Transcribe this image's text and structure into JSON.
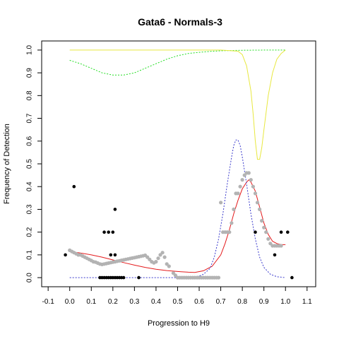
{
  "chart_data": {
    "type": "scatter",
    "title": "Gata6 - Normals-3",
    "xlabel": "Progression to H9",
    "ylabel": "Frequency of Detection",
    "xlim": [
      -0.13,
      1.14
    ],
    "ylim": [
      -0.04,
      1.04
    ],
    "x_ticks": [
      "-0.1",
      "0.0",
      "0.1",
      "0.2",
      "0.3",
      "0.4",
      "0.5",
      "0.6",
      "0.7",
      "0.8",
      "0.9",
      "1.0",
      "1.1"
    ],
    "y_ticks": [
      "0.0",
      "0.1",
      "0.2",
      "0.3",
      "0.4",
      "0.5",
      "0.6",
      "0.7",
      "0.8",
      "0.9",
      "1.0"
    ],
    "grid": false,
    "legend": "none",
    "colors": {
      "gray_points": "#b3b3b3",
      "black_points": "#000000",
      "red_curve": "#e41a1c",
      "blue_curve": "#3a3acc",
      "green_curve": "#22dd22",
      "yellow_curve": "#e8e840"
    },
    "series": [
      {
        "kind": "points",
        "color": "gray",
        "points": [
          [
            0.0,
            0.12
          ],
          [
            0.01,
            0.115
          ],
          [
            0.02,
            0.11
          ],
          [
            0.03,
            0.105
          ],
          [
            0.04,
            0.1
          ],
          [
            0.05,
            0.1
          ],
          [
            0.06,
            0.095
          ],
          [
            0.07,
            0.09
          ],
          [
            0.08,
            0.085
          ],
          [
            0.09,
            0.08
          ],
          [
            0.1,
            0.075
          ],
          [
            0.11,
            0.07
          ],
          [
            0.12,
            0.068
          ],
          [
            0.13,
            0.064
          ],
          [
            0.14,
            0.06
          ],
          [
            0.15,
            0.058
          ],
          [
            0.16,
            0.06
          ],
          [
            0.17,
            0.062
          ],
          [
            0.18,
            0.064
          ],
          [
            0.19,
            0.066
          ],
          [
            0.2,
            0.068
          ],
          [
            0.21,
            0.07
          ],
          [
            0.22,
            0.072
          ],
          [
            0.23,
            0.074
          ],
          [
            0.24,
            0.076
          ],
          [
            0.25,
            0.078
          ],
          [
            0.26,
            0.08
          ],
          [
            0.27,
            0.082
          ],
          [
            0.28,
            0.084
          ],
          [
            0.29,
            0.086
          ],
          [
            0.3,
            0.088
          ],
          [
            0.31,
            0.09
          ],
          [
            0.32,
            0.092
          ],
          [
            0.33,
            0.094
          ],
          [
            0.34,
            0.096
          ],
          [
            0.35,
            0.098
          ],
          [
            0.36,
            0.09
          ],
          [
            0.37,
            0.08
          ],
          [
            0.38,
            0.07
          ],
          [
            0.39,
            0.065
          ],
          [
            0.4,
            0.07
          ],
          [
            0.41,
            0.085
          ],
          [
            0.42,
            0.1
          ],
          [
            0.43,
            0.11
          ],
          [
            0.44,
            0.09
          ],
          [
            0.45,
            0.06
          ],
          [
            0.46,
            0.05
          ],
          [
            0.48,
            0.02
          ],
          [
            0.49,
            0.01
          ],
          [
            0.5,
            0.0
          ],
          [
            0.51,
            0.0
          ],
          [
            0.52,
            0.0
          ],
          [
            0.53,
            0.0
          ],
          [
            0.54,
            0.0
          ],
          [
            0.55,
            0.0
          ],
          [
            0.56,
            0.0
          ],
          [
            0.57,
            0.0
          ],
          [
            0.58,
            0.0
          ],
          [
            0.59,
            0.0
          ],
          [
            0.6,
            0.0
          ],
          [
            0.61,
            0.0
          ],
          [
            0.62,
            0.0
          ],
          [
            0.63,
            0.0
          ],
          [
            0.64,
            0.0
          ],
          [
            0.65,
            0.0
          ],
          [
            0.66,
            0.0
          ],
          [
            0.67,
            0.0
          ],
          [
            0.68,
            0.0
          ],
          [
            0.69,
            0.0
          ],
          [
            0.7,
            0.33
          ],
          [
            0.71,
            0.2
          ],
          [
            0.72,
            0.2
          ],
          [
            0.73,
            0.2
          ],
          [
            0.74,
            0.2
          ],
          [
            0.75,
            0.24
          ],
          [
            0.76,
            0.3
          ],
          [
            0.77,
            0.37
          ],
          [
            0.78,
            0.37
          ],
          [
            0.79,
            0.4
          ],
          [
            0.8,
            0.43
          ],
          [
            0.81,
            0.45
          ],
          [
            0.82,
            0.46
          ],
          [
            0.83,
            0.46
          ],
          [
            0.84,
            0.43
          ],
          [
            0.85,
            0.4
          ],
          [
            0.86,
            0.37
          ],
          [
            0.87,
            0.33
          ],
          [
            0.88,
            0.3
          ],
          [
            0.89,
            0.25
          ],
          [
            0.9,
            0.22
          ],
          [
            0.91,
            0.2
          ],
          [
            0.92,
            0.17
          ],
          [
            0.93,
            0.15
          ],
          [
            0.94,
            0.14
          ],
          [
            0.95,
            0.14
          ],
          [
            0.96,
            0.14
          ],
          [
            0.97,
            0.14
          ],
          [
            0.98,
            0.14
          ]
        ]
      },
      {
        "kind": "points",
        "color": "black",
        "points": [
          [
            -0.02,
            0.1
          ],
          [
            0.02,
            0.4
          ],
          [
            0.21,
            0.3
          ],
          [
            0.16,
            0.2
          ],
          [
            0.18,
            0.2
          ],
          [
            0.2,
            0.2
          ],
          [
            0.19,
            0.1
          ],
          [
            0.21,
            0.1
          ],
          [
            0.14,
            0.0
          ],
          [
            0.15,
            0.0
          ],
          [
            0.16,
            0.0
          ],
          [
            0.17,
            0.0
          ],
          [
            0.18,
            0.0
          ],
          [
            0.19,
            0.0
          ],
          [
            0.2,
            0.0
          ],
          [
            0.21,
            0.0
          ],
          [
            0.22,
            0.0
          ],
          [
            0.23,
            0.0
          ],
          [
            0.24,
            0.0
          ],
          [
            0.25,
            0.0
          ],
          [
            0.32,
            0.0
          ],
          [
            0.86,
            0.2
          ],
          [
            0.95,
            0.1
          ],
          [
            0.98,
            0.2
          ],
          [
            1.01,
            0.2
          ],
          [
            1.03,
            0.0
          ]
        ]
      },
      {
        "kind": "line",
        "color": "red",
        "points": [
          [
            0.0,
            0.115
          ],
          [
            0.05,
            0.108
          ],
          [
            0.1,
            0.1
          ],
          [
            0.15,
            0.09
          ],
          [
            0.2,
            0.078
          ],
          [
            0.25,
            0.066
          ],
          [
            0.3,
            0.055
          ],
          [
            0.35,
            0.045
          ],
          [
            0.4,
            0.037
          ],
          [
            0.45,
            0.031
          ],
          [
            0.5,
            0.027
          ],
          [
            0.55,
            0.024
          ],
          [
            0.58,
            0.023
          ],
          [
            0.62,
            0.03
          ],
          [
            0.66,
            0.05
          ],
          [
            0.7,
            0.1
          ],
          [
            0.72,
            0.15
          ],
          [
            0.74,
            0.21
          ],
          [
            0.76,
            0.28
          ],
          [
            0.78,
            0.34
          ],
          [
            0.8,
            0.39
          ],
          [
            0.82,
            0.42
          ],
          [
            0.83,
            0.43
          ],
          [
            0.84,
            0.42
          ],
          [
            0.86,
            0.38
          ],
          [
            0.88,
            0.31
          ],
          [
            0.9,
            0.24
          ],
          [
            0.92,
            0.19
          ],
          [
            0.94,
            0.16
          ],
          [
            0.96,
            0.15
          ],
          [
            0.98,
            0.145
          ],
          [
            1.0,
            0.145
          ]
        ]
      },
      {
        "kind": "line",
        "color": "blue",
        "dashed": true,
        "points": [
          [
            0.0,
            0.0
          ],
          [
            0.1,
            0.0
          ],
          [
            0.2,
            0.0
          ],
          [
            0.3,
            0.0
          ],
          [
            0.4,
            0.0
          ],
          [
            0.5,
            0.0
          ],
          [
            0.55,
            0.001
          ],
          [
            0.6,
            0.007
          ],
          [
            0.62,
            0.015
          ],
          [
            0.65,
            0.04
          ],
          [
            0.67,
            0.09
          ],
          [
            0.69,
            0.17
          ],
          [
            0.71,
            0.28
          ],
          [
            0.73,
            0.41
          ],
          [
            0.75,
            0.53
          ],
          [
            0.76,
            0.58
          ],
          [
            0.77,
            0.605
          ],
          [
            0.78,
            0.605
          ],
          [
            0.79,
            0.58
          ],
          [
            0.8,
            0.53
          ],
          [
            0.82,
            0.41
          ],
          [
            0.84,
            0.28
          ],
          [
            0.86,
            0.17
          ],
          [
            0.88,
            0.09
          ],
          [
            0.9,
            0.045
          ],
          [
            0.93,
            0.015
          ],
          [
            0.96,
            0.004
          ],
          [
            1.0,
            0.0
          ]
        ]
      },
      {
        "kind": "line",
        "color": "green",
        "dashed": true,
        "points": [
          [
            0.0,
            0.955
          ],
          [
            0.05,
            0.94
          ],
          [
            0.1,
            0.92
          ],
          [
            0.15,
            0.9
          ],
          [
            0.2,
            0.89
          ],
          [
            0.25,
            0.89
          ],
          [
            0.3,
            0.9
          ],
          [
            0.35,
            0.92
          ],
          [
            0.4,
            0.94
          ],
          [
            0.45,
            0.96
          ],
          [
            0.5,
            0.975
          ],
          [
            0.55,
            0.985
          ],
          [
            0.6,
            0.99
          ],
          [
            0.65,
            0.994
          ],
          [
            0.7,
            0.997
          ],
          [
            0.8,
            0.999
          ],
          [
            0.9,
            1.0
          ],
          [
            1.0,
            1.0
          ]
        ]
      },
      {
        "kind": "line",
        "color": "yellow",
        "dashed": false,
        "points": [
          [
            0.0,
            1.0
          ],
          [
            0.5,
            1.0
          ],
          [
            0.7,
            1.0
          ],
          [
            0.78,
            0.995
          ],
          [
            0.8,
            0.98
          ],
          [
            0.82,
            0.93
          ],
          [
            0.84,
            0.82
          ],
          [
            0.85,
            0.72
          ],
          [
            0.86,
            0.6
          ],
          [
            0.87,
            0.52
          ],
          [
            0.88,
            0.52
          ],
          [
            0.89,
            0.57
          ],
          [
            0.9,
            0.65
          ],
          [
            0.92,
            0.8
          ],
          [
            0.94,
            0.9
          ],
          [
            0.96,
            0.96
          ],
          [
            0.98,
            0.985
          ],
          [
            1.0,
            1.0
          ]
        ]
      }
    ]
  }
}
